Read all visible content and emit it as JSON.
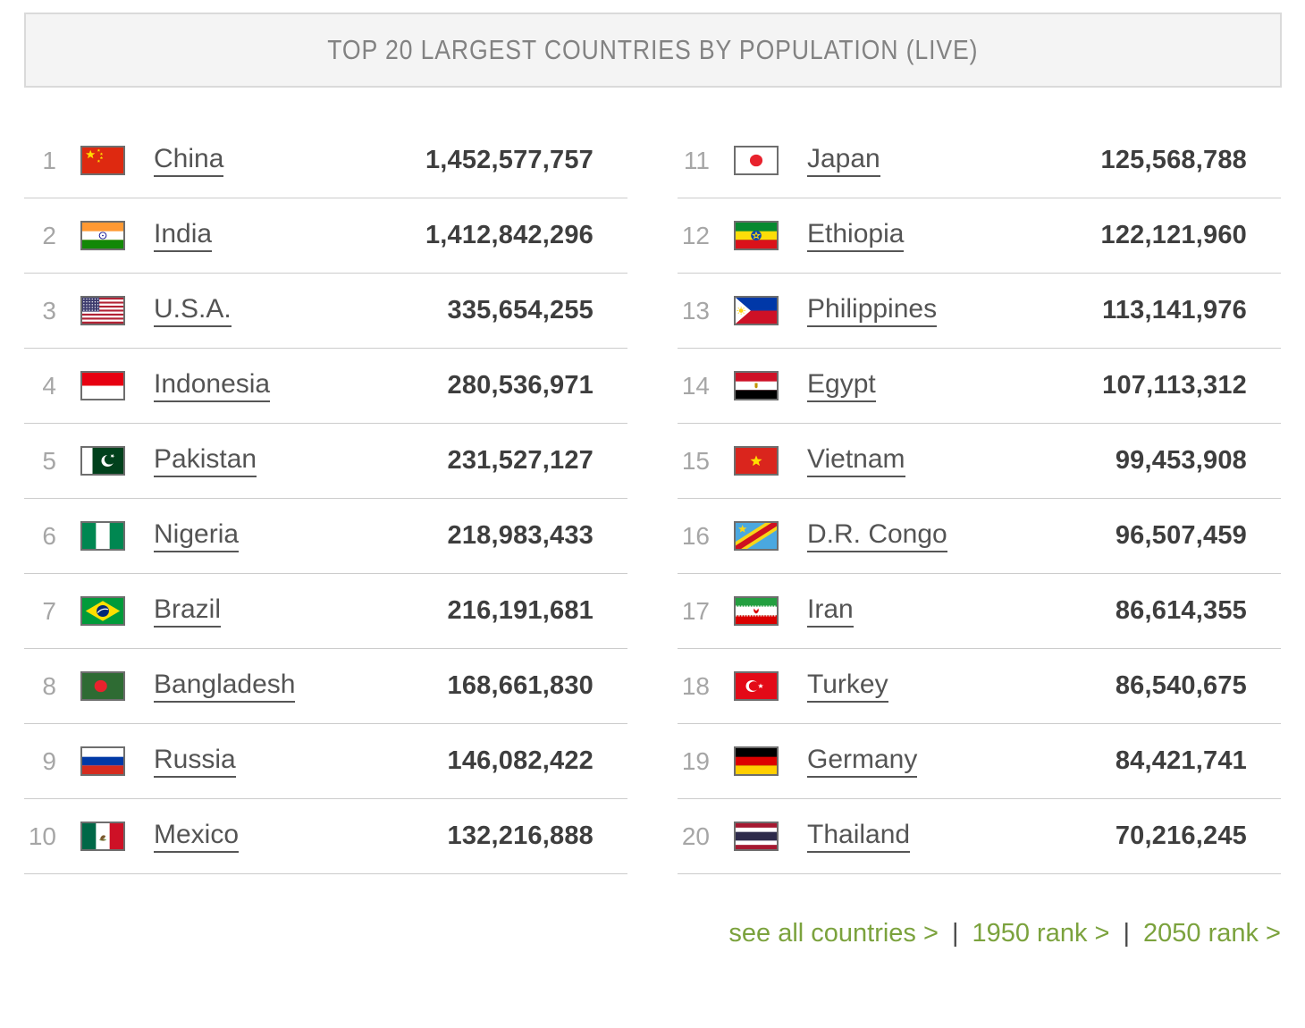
{
  "title": "TOP 20 LARGEST COUNTRIES BY POPULATION (LIVE)",
  "columns": [
    {
      "rows": [
        {
          "rank": "1",
          "country": "China",
          "population": "1,452,577,757",
          "flag_icon": "china-flag-icon"
        },
        {
          "rank": "2",
          "country": "India",
          "population": "1,412,842,296",
          "flag_icon": "india-flag-icon"
        },
        {
          "rank": "3",
          "country": "U.S.A.",
          "population": "335,654,255",
          "flag_icon": "usa-flag-icon"
        },
        {
          "rank": "4",
          "country": "Indonesia",
          "population": "280,536,971",
          "flag_icon": "indonesia-flag-icon"
        },
        {
          "rank": "5",
          "country": "Pakistan",
          "population": "231,527,127",
          "flag_icon": "pakistan-flag-icon"
        },
        {
          "rank": "6",
          "country": "Nigeria",
          "population": "218,983,433",
          "flag_icon": "nigeria-flag-icon"
        },
        {
          "rank": "7",
          "country": "Brazil",
          "population": "216,191,681",
          "flag_icon": "brazil-flag-icon"
        },
        {
          "rank": "8",
          "country": "Bangladesh",
          "population": "168,661,830",
          "flag_icon": "bangladesh-flag-icon"
        },
        {
          "rank": "9",
          "country": "Russia",
          "population": "146,082,422",
          "flag_icon": "russia-flag-icon"
        },
        {
          "rank": "10",
          "country": "Mexico",
          "population": "132,216,888",
          "flag_icon": "mexico-flag-icon"
        }
      ]
    },
    {
      "rows": [
        {
          "rank": "11",
          "country": "Japan",
          "population": "125,568,788",
          "flag_icon": "japan-flag-icon"
        },
        {
          "rank": "12",
          "country": "Ethiopia",
          "population": "122,121,960",
          "flag_icon": "ethiopia-flag-icon"
        },
        {
          "rank": "13",
          "country": "Philippines",
          "population": "113,141,976",
          "flag_icon": "philippines-flag-icon"
        },
        {
          "rank": "14",
          "country": "Egypt",
          "population": "107,113,312",
          "flag_icon": "egypt-flag-icon"
        },
        {
          "rank": "15",
          "country": "Vietnam",
          "population": "99,453,908",
          "flag_icon": "vietnam-flag-icon"
        },
        {
          "rank": "16",
          "country": "D.R. Congo",
          "population": "96,507,459",
          "flag_icon": "dr-congo-flag-icon"
        },
        {
          "rank": "17",
          "country": "Iran",
          "population": "86,614,355",
          "flag_icon": "iran-flag-icon"
        },
        {
          "rank": "18",
          "country": "Turkey",
          "population": "86,540,675",
          "flag_icon": "turkey-flag-icon"
        },
        {
          "rank": "19",
          "country": "Germany",
          "population": "84,421,741",
          "flag_icon": "germany-flag-icon"
        },
        {
          "rank": "20",
          "country": "Thailand",
          "population": "70,216,245",
          "flag_icon": "thailand-flag-icon"
        }
      ]
    }
  ],
  "footer": {
    "separator": "|",
    "links": [
      {
        "label": "see all countries >"
      },
      {
        "label": "1950 rank >"
      },
      {
        "label": "2050 rank >"
      }
    ]
  },
  "colors": {
    "accent_green": "#7ba23d",
    "title_gray": "#828282",
    "rank_gray": "#a6a6a6",
    "country_link_gray": "#545454",
    "population_dark": "#3e3e3e",
    "row_divider": "#cccccc",
    "header_bg": "#f4f4f4",
    "header_border": "#dadada",
    "flag_border": "#6e6e6e"
  }
}
